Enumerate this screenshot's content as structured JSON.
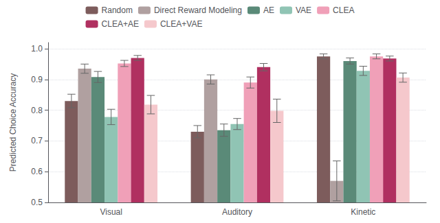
{
  "chart_data": {
    "type": "bar",
    "categories": [
      "Visual",
      "Auditory",
      "Kinetic"
    ],
    "series": [
      {
        "name": "Random",
        "color": "#7d5c5c",
        "values": [
          0.83,
          0.73,
          0.975
        ],
        "yerr": [
          0.022,
          0.02,
          0.008
        ]
      },
      {
        "name": "Direct Reward Modeling",
        "color": "#b0a0a0",
        "values": [
          0.935,
          0.9,
          0.57
        ],
        "yerr": [
          0.015,
          0.015,
          0.065
        ]
      },
      {
        "name": "AE",
        "color": "#5a8a78",
        "values": [
          0.908,
          0.735,
          0.96
        ],
        "yerr": [
          0.018,
          0.02,
          0.01
        ]
      },
      {
        "name": "VAE",
        "color": "#90c4b4",
        "values": [
          0.778,
          0.755,
          0.928
        ],
        "yerr": [
          0.025,
          0.018,
          0.015
        ]
      },
      {
        "name": "CLEA",
        "color": "#f0a0b8",
        "values": [
          0.952,
          0.89,
          0.975
        ],
        "yerr": [
          0.01,
          0.018,
          0.008
        ]
      },
      {
        "name": "CLEA+AE",
        "color": "#b03060",
        "values": [
          0.97,
          0.94,
          0.968
        ],
        "yerr": [
          0.008,
          0.012,
          0.008
        ]
      },
      {
        "name": "CLEA+VAE",
        "color": "#f5c8cc",
        "values": [
          0.818,
          0.798,
          0.906
        ],
        "yerr": [
          0.03,
          0.038,
          0.015
        ]
      }
    ],
    "ylabel": "Predicted Choice Accuracy",
    "ylim": [
      0.5,
      1.02
    ],
    "yticks": [
      0.5,
      0.6,
      0.7,
      0.8,
      0.9,
      {
        "value": 1.0,
        "label": "1.0"
      }
    ],
    "grid": true,
    "legend": "top"
  }
}
